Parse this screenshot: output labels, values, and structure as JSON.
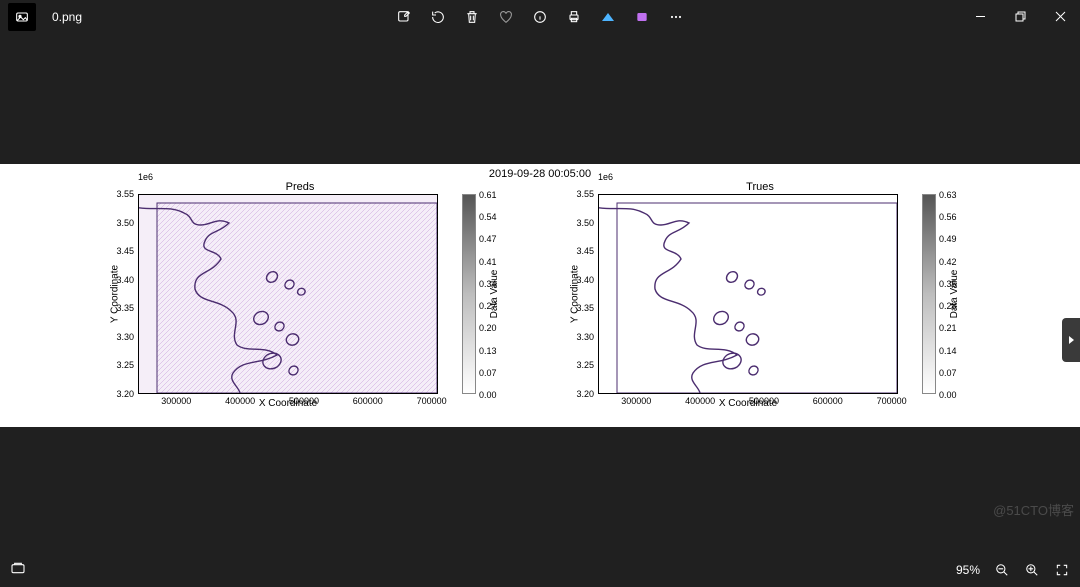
{
  "app": {
    "filename": "0.png"
  },
  "toolbar_icons": [
    "edit",
    "rotate",
    "delete",
    "heart",
    "info",
    "print",
    "share",
    "clip",
    "more"
  ],
  "window_controls": {
    "min": "minimize",
    "max": "restore",
    "close": "close"
  },
  "figure": {
    "suptitle": "2019-09-28 00:05:00",
    "background_color": "#ffffff",
    "panels": [
      {
        "title": "Preds",
        "xlabel": "X Coordinate",
        "ylabel": "Y Coordinate",
        "x_ticks": [
          "300000",
          "400000",
          "500000",
          "600000",
          "700000"
        ],
        "y_ticks": [
          "3.20",
          "3.25",
          "3.30",
          "3.35",
          "3.40",
          "3.45",
          "3.50",
          "3.55"
        ],
        "y_exponent": "1e6",
        "xlim": [
          240000,
          710000
        ],
        "ylim": [
          3170000,
          3570000
        ],
        "coast_color": "#4b2d6f",
        "fill_color": "#f5eef8",
        "hatched": true,
        "colorbar": {
          "label": "Data Value",
          "ticks": [
            "0.00",
            "0.07",
            "0.13",
            "0.20",
            "0.27",
            "0.34",
            "0.41",
            "0.47",
            "0.54",
            "0.61"
          ]
        }
      },
      {
        "title": "Trues",
        "xlabel": "X Coordinate",
        "ylabel": "Y Coordinate",
        "x_ticks": [
          "300000",
          "400000",
          "500000",
          "600000",
          "700000"
        ],
        "y_ticks": [
          "3.20",
          "3.25",
          "3.30",
          "3.35",
          "3.40",
          "3.45",
          "3.50",
          "3.55"
        ],
        "y_exponent": "1e6",
        "xlim": [
          240000,
          710000
        ],
        "ylim": [
          3170000,
          3570000
        ],
        "coast_color": "#4b2d6f",
        "fill_color": "#ffffff",
        "hatched": false,
        "colorbar": {
          "label": "Data Value",
          "ticks": [
            "0.00",
            "0.07",
            "0.14",
            "0.21",
            "0.28",
            "0.35",
            "0.42",
            "0.49",
            "0.56",
            "0.63"
          ]
        }
      }
    ]
  },
  "statusbar": {
    "zoom": "95%"
  },
  "watermark": "@51CTO博客"
}
